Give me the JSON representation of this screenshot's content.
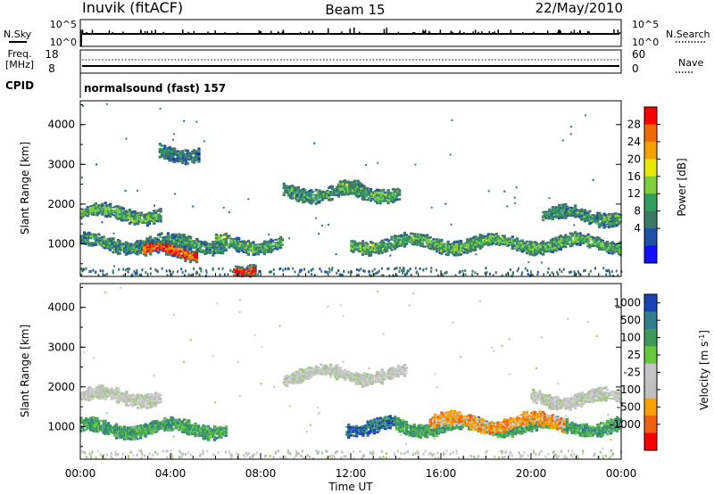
{
  "header": {
    "station": "Inuvik (fitACF)",
    "beam": "Beam 15",
    "date": "22/May/2010"
  },
  "strip_labels": {
    "nsky": "N.Sky",
    "nsky_ticks": [
      "10^5",
      "10^0"
    ],
    "nsearch": "N.Search",
    "nsearch_ticks": [
      "10^5",
      "10^0"
    ],
    "freq": "Freq.",
    "freq_unit": "[MHz]",
    "freq_ticks": [
      "18",
      "8"
    ],
    "nave": "Nave",
    "nave_ticks": [
      "60",
      "0"
    ],
    "cpid": "CPID",
    "cpid_value": "normalsound (fast) 157"
  },
  "chart_data": [
    {
      "type": "heatmap",
      "panel": "power",
      "ylabel": "Slant Range [km]",
      "xlabel": "",
      "y_ticks": [
        "1000",
        "2000",
        "3000",
        "4000"
      ],
      "ylim": [
        180,
        4600
      ],
      "xlim": [
        0,
        24
      ],
      "colorbar_label": "Power [dB]",
      "colorbar_ticks": [
        "28",
        "24",
        "20",
        "16",
        "12",
        "8",
        "4"
      ],
      "colorbar_colors": [
        "#ff0000",
        "#f06a00",
        "#f5a000",
        "#e8e800",
        "#7fcd3f",
        "#2fa060",
        "#3c7a66",
        "#1e4faa",
        "#1010ff"
      ],
      "features": [
        {
          "t0": 0.0,
          "t1": 3.6,
          "range_km": 1750,
          "level": 12
        },
        {
          "t0": 0.0,
          "t1": 6.5,
          "range_km": 1000,
          "level": 10
        },
        {
          "t0": 2.8,
          "t1": 5.2,
          "range_km": 800,
          "level": 26
        },
        {
          "t0": 3.5,
          "t1": 5.3,
          "range_km": 3300,
          "level": 8
        },
        {
          "t0": 6.0,
          "t1": 9.0,
          "range_km": 1000,
          "level": 12
        },
        {
          "t0": 6.8,
          "t1": 7.8,
          "range_km": 400,
          "level": 28
        },
        {
          "t0": 9.0,
          "t1": 12.5,
          "range_km": 2300,
          "level": 10
        },
        {
          "t0": 11.5,
          "t1": 14.2,
          "range_km": 2300,
          "level": 12
        },
        {
          "t0": 12.0,
          "t1": 24.0,
          "range_km": 1000,
          "level": 12
        },
        {
          "t0": 20.5,
          "t1": 24.0,
          "range_km": 1700,
          "level": 10
        }
      ]
    },
    {
      "type": "heatmap",
      "panel": "velocity",
      "ylabel": "Slant Range [km]",
      "xlabel": "Time UT",
      "x_ticks": [
        "00:00",
        "04:00",
        "08:00",
        "12:00",
        "16:00",
        "20:00",
        "00:00"
      ],
      "y_ticks": [
        "1000",
        "2000",
        "3000",
        "4000"
      ],
      "ylim": [
        180,
        4600
      ],
      "xlim": [
        0,
        24
      ],
      "colorbar_label": "Velocity [m s",
      "colorbar_label_exponent": "-1",
      "colorbar_ticks": [
        "1000",
        "500",
        "100",
        "25",
        "-25",
        "-100",
        "-500",
        "-1000"
      ],
      "colorbar_colors": [
        "#1b43b8",
        "#2e7e8c",
        "#3d9a5a",
        "#65c93b",
        "#c4c4c4",
        "#c0c0c0",
        "#f8a000",
        "#f06010",
        "#ff0000"
      ],
      "features": [
        {
          "t0": 0.0,
          "t1": 3.6,
          "range_km": 1750,
          "class": "near-zero"
        },
        {
          "t0": 0.0,
          "t1": 6.5,
          "range_km": 950,
          "class": "positive"
        },
        {
          "t0": 9.0,
          "t1": 14.5,
          "range_km": 2300,
          "class": "near-zero"
        },
        {
          "t0": 11.8,
          "t1": 14.0,
          "range_km": 1000,
          "class": "strong-positive"
        },
        {
          "t0": 14.0,
          "t1": 24.0,
          "range_km": 1000,
          "class": "positive"
        },
        {
          "t0": 15.5,
          "t1": 21.5,
          "range_km": 1100,
          "class": "negative"
        },
        {
          "t0": 20.0,
          "t1": 24.0,
          "range_km": 1700,
          "class": "near-zero"
        }
      ]
    }
  ]
}
